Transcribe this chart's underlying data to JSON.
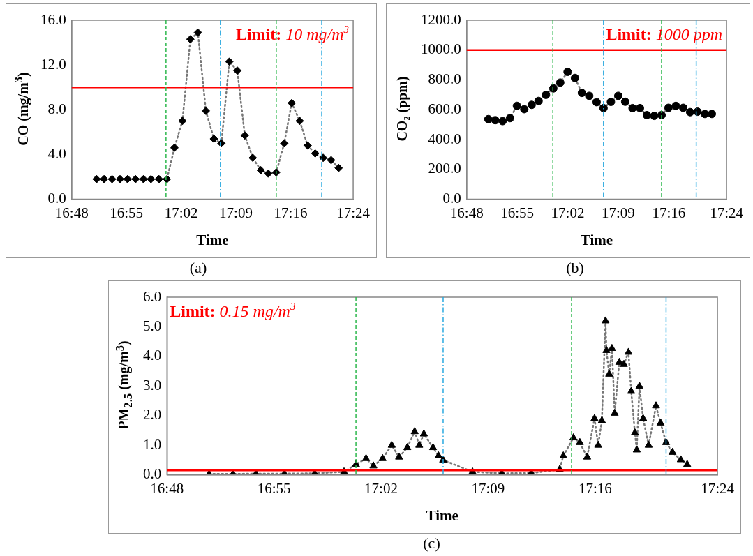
{
  "chart_data": [
    {
      "type": "line",
      "xlabel": "Time",
      "ylabel": "CO (mg/m$^{3}$)",
      "annotations": [
        "(a)"
      ],
      "marker": "diamond",
      "line_style": "dotted",
      "grid": false,
      "color": "#000000",
      "x": [
        16.853,
        16.869,
        16.886,
        16.903,
        16.919,
        16.936,
        16.953,
        16.969,
        16.986,
        17.003,
        17.019,
        17.036,
        17.053,
        17.069,
        17.086,
        17.103,
        17.119,
        17.136,
        17.153,
        17.169,
        17.186,
        17.203,
        17.219,
        17.236,
        17.253,
        17.269,
        17.286,
        17.303,
        17.319,
        17.336,
        17.353,
        17.369
      ],
      "values": [
        1.8,
        1.8,
        1.8,
        1.8,
        1.8,
        1.8,
        1.8,
        1.8,
        1.8,
        1.8,
        4.6,
        7.0,
        14.3,
        14.9,
        7.9,
        5.4,
        5.0,
        12.3,
        11.5,
        5.7,
        3.7,
        2.6,
        2.3,
        2.4,
        5.0,
        8.6,
        7.0,
        4.8,
        4.1,
        3.7,
        3.5,
        2.8
      ],
      "xlim": [
        16.8,
        17.4
      ],
      "xticks": [
        {
          "value": 16.8,
          "label": "16:48"
        },
        {
          "value": 16.9167,
          "label": "16:55"
        },
        {
          "value": 17.0333,
          "label": "17:02"
        },
        {
          "value": 17.15,
          "label": "17:09"
        },
        {
          "value": 17.2667,
          "label": "17:16"
        },
        {
          "value": 17.4,
          "label": "17:24"
        }
      ],
      "ylim": [
        0,
        16
      ],
      "yticks": [
        {
          "value": 0,
          "label": "0.0"
        },
        {
          "value": 4,
          "label": "4.0"
        },
        {
          "value": 8,
          "label": "8.0"
        },
        {
          "value": 12,
          "label": "12.0"
        },
        {
          "value": 16,
          "label": "16.0"
        }
      ],
      "ref_lines": [
        {
          "axis": "y",
          "value": 10,
          "label": "Limit: 10 mg/m$^{3}$",
          "color": "#ff0000",
          "line_style": "solid"
        },
        {
          "axis": "x",
          "value": 17.001,
          "color": "#2db84d",
          "line_style": "dashed"
        },
        {
          "axis": "x",
          "value": 17.117,
          "color": "#29a9e0",
          "line_style": "dashdot"
        },
        {
          "axis": "x",
          "value": 17.236,
          "color": "#2db84d",
          "line_style": "dashed"
        },
        {
          "axis": "x",
          "value": 17.333,
          "color": "#29a9e0",
          "line_style": "dashdot"
        }
      ]
    },
    {
      "type": "line",
      "xlabel": "Time",
      "ylabel": "CO₂ (ppm)",
      "annotations": [
        "(b)"
      ],
      "marker": "circle",
      "line_style": "dotted",
      "grid": false,
      "color": "#000000",
      "x": [
        16.85,
        16.866,
        16.883,
        16.9,
        16.916,
        16.933,
        16.95,
        16.966,
        16.983,
        17.0,
        17.016,
        17.033,
        17.05,
        17.066,
        17.083,
        17.1,
        17.116,
        17.133,
        17.15,
        17.166,
        17.183,
        17.2,
        17.216,
        17.233,
        17.25,
        17.266,
        17.283,
        17.3,
        17.316,
        17.333,
        17.35,
        17.366
      ],
      "values": [
        537,
        530,
        524,
        544,
        626,
        604,
        633,
        659,
        700,
        743,
        782,
        854,
        813,
        713,
        693,
        651,
        611,
        653,
        693,
        654,
        611,
        611,
        564,
        559,
        564,
        613,
        626,
        613,
        584,
        587,
        572,
        572
      ],
      "xlim": [
        16.8,
        17.4
      ],
      "xticks": [
        {
          "value": 16.8,
          "label": "16:48"
        },
        {
          "value": 16.9167,
          "label": "16:55"
        },
        {
          "value": 17.0333,
          "label": "17:02"
        },
        {
          "value": 17.15,
          "label": "17:09"
        },
        {
          "value": 17.2667,
          "label": "17:16"
        },
        {
          "value": 17.4,
          "label": "17:24"
        }
      ],
      "ylim": [
        0,
        1200
      ],
      "yticks": [
        {
          "value": 0,
          "label": "0.0"
        },
        {
          "value": 200,
          "label": "200.0"
        },
        {
          "value": 400,
          "label": "400.0"
        },
        {
          "value": 600,
          "label": "600.0"
        },
        {
          "value": 800,
          "label": "800.0"
        },
        {
          "value": 1000,
          "label": "1000.0"
        },
        {
          "value": 1200,
          "label": "1200.0"
        }
      ],
      "ref_lines": [
        {
          "axis": "y",
          "value": 1000,
          "label": "Limit: 1000 ppm",
          "color": "#ff0000",
          "line_style": "solid"
        },
        {
          "axis": "x",
          "value": 16.999,
          "color": "#2db84d",
          "line_style": "dashed"
        },
        {
          "axis": "x",
          "value": 17.116,
          "color": "#29a9e0",
          "line_style": "dashdot"
        },
        {
          "axis": "x",
          "value": 17.25,
          "color": "#2db84d",
          "line_style": "dashed"
        },
        {
          "axis": "x",
          "value": 17.33,
          "color": "#29a9e0",
          "line_style": "dashdot"
        }
      ]
    },
    {
      "type": "line",
      "xlabel": "Time",
      "ylabel": "PM$_{2.5}$ (mg/m$^{3}$)",
      "annotations": [
        "(c)"
      ],
      "marker": "triangle",
      "line_style": "dotted",
      "grid": false,
      "color": "#000000",
      "x": [
        16.846,
        16.872,
        16.897,
        16.928,
        16.961,
        16.993,
        17.006,
        17.017,
        17.025,
        17.035,
        17.045,
        17.053,
        17.062,
        17.07,
        17.075,
        17.08,
        17.09,
        17.096,
        17.101,
        17.133,
        17.165,
        17.197,
        17.228,
        17.232,
        17.243,
        17.25,
        17.258,
        17.266,
        17.27,
        17.274,
        17.278,
        17.279,
        17.282,
        17.285,
        17.288,
        17.293,
        17.298,
        17.303,
        17.306,
        17.31,
        17.312,
        17.315,
        17.319,
        17.325,
        17.333,
        17.338,
        17.344,
        17.351,
        17.36,
        17.367
      ],
      "values": [
        0.03,
        0.03,
        0.04,
        0.04,
        0.05,
        0.1,
        0.35,
        0.55,
        0.3,
        0.55,
        1.0,
        0.6,
        0.92,
        1.46,
        1.0,
        1.38,
        0.92,
        0.64,
        0.5,
        0.1,
        0.05,
        0.06,
        0.18,
        0.64,
        1.25,
        1.09,
        0.6,
        1.9,
        1.0,
        1.83,
        5.2,
        4.2,
        3.4,
        4.27,
        2.08,
        3.8,
        3.73,
        4.14,
        2.82,
        1.42,
        0.84,
        2.99,
        1.9,
        1.0,
        2.33,
        1.75,
        1.09,
        0.76,
        0.51,
        0.35
      ],
      "xlim": [
        16.8,
        17.4
      ],
      "xticks": [
        {
          "value": 16.8,
          "label": "16:48"
        },
        {
          "value": 16.9167,
          "label": "16:55"
        },
        {
          "value": 17.0333,
          "label": "17:02"
        },
        {
          "value": 17.15,
          "label": "17:09"
        },
        {
          "value": 17.2667,
          "label": "17:16"
        },
        {
          "value": 17.4,
          "label": "17:24"
        }
      ],
      "ylim": [
        0,
        6
      ],
      "yticks": [
        {
          "value": 0,
          "label": "0.0"
        },
        {
          "value": 1,
          "label": "1.0"
        },
        {
          "value": 2,
          "label": "2.0"
        },
        {
          "value": 3,
          "label": "3.0"
        },
        {
          "value": 4,
          "label": "4.0"
        },
        {
          "value": 5,
          "label": "5.0"
        },
        {
          "value": 6,
          "label": "6.0"
        }
      ],
      "ref_lines": [
        {
          "axis": "y",
          "value": 0.15,
          "label": "Limit: 0.15 mg/m$^{3}$",
          "color": "#ff0000",
          "line_style": "solid"
        },
        {
          "axis": "x",
          "value": 17.006,
          "color": "#2db84d",
          "line_style": "dashed"
        },
        {
          "axis": "x",
          "value": 17.101,
          "color": "#29a9e0",
          "line_style": "dashdot"
        },
        {
          "axis": "x",
          "value": 17.241,
          "color": "#2db84d",
          "line_style": "dashed"
        },
        {
          "axis": "x",
          "value": 17.344,
          "color": "#29a9e0",
          "line_style": "dashdot"
        }
      ]
    }
  ]
}
